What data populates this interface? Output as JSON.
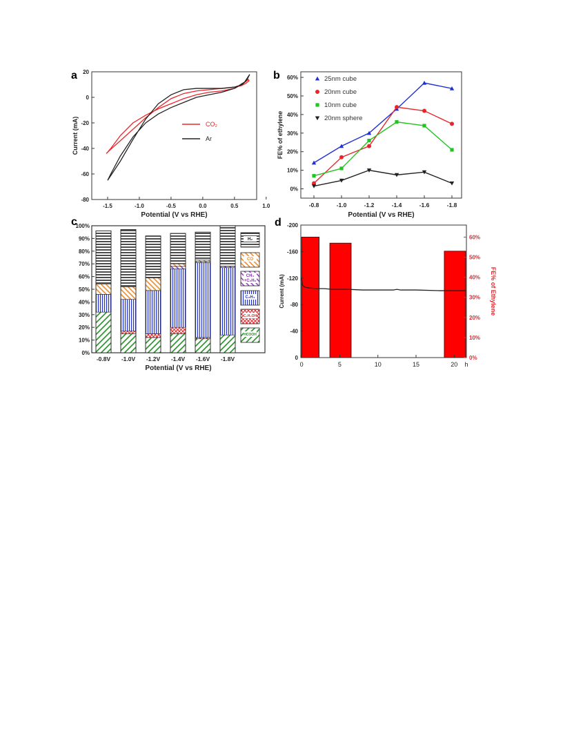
{
  "panels": {
    "a": {
      "letter": "a"
    },
    "b": {
      "letter": "b"
    },
    "c": {
      "letter": "c"
    },
    "d": {
      "letter": "d"
    }
  },
  "colors": {
    "red": "#e8262a",
    "blue": "#1f2fd6",
    "green": "#22c422",
    "black": "#222222",
    "orange": "#e88a2a",
    "purple": "#8a2cb8",
    "bar_red": "#ff0000",
    "hatch_green": "#1e8a1e"
  },
  "chart_data": [
    {
      "id": "a",
      "type": "line",
      "title": "",
      "xlabel": "Potential (V vs RHE)",
      "ylabel": "Current (mA)",
      "xlim": [
        -1.75,
        0.85
      ],
      "ylim": [
        -80,
        20
      ],
      "xticks": [
        "-1.5",
        "-1.0",
        "-0.5",
        "0.0",
        "0.5",
        "1.0"
      ],
      "xtick_values": [
        -1.5,
        -1.0,
        -0.5,
        0.0,
        0.5,
        1.0
      ],
      "yticks": [
        "20",
        "0",
        "-20",
        "-40",
        "-60",
        "-80"
      ],
      "ytick_values": [
        20,
        0,
        -20,
        -40,
        -60,
        -80
      ],
      "legend_position": "center-right",
      "series": [
        {
          "name": "CO₂",
          "color": "#e8262a",
          "x": [
            -1.48,
            -1.3,
            -1.1,
            -0.9,
            -0.7,
            -0.5,
            -0.3,
            -0.1,
            0.1,
            0.3,
            0.5,
            0.6,
            0.68,
            0.73,
            0.72,
            0.62,
            0.5,
            0.3,
            0.1,
            -0.1,
            -0.3,
            -0.5,
            -0.7,
            -0.9,
            -1.1,
            -1.3,
            -1.45,
            -1.52,
            -1.48
          ],
          "y": [
            -42,
            -34,
            -25,
            -16,
            -8,
            -1,
            3,
            5,
            6,
            7,
            8,
            9,
            11,
            13,
            14,
            10,
            7,
            5,
            4,
            2,
            -1,
            -5,
            -9,
            -14,
            -20,
            -30,
            -40,
            -44,
            -42
          ]
        },
        {
          "name": "Ar",
          "color": "#222222",
          "x": [
            -1.5,
            -1.3,
            -1.1,
            -0.9,
            -0.7,
            -0.5,
            -0.3,
            -0.1,
            0.1,
            0.3,
            0.5,
            0.62,
            0.7,
            0.74,
            0.66,
            0.5,
            0.3,
            0.1,
            -0.1,
            -0.3,
            -0.5,
            -0.7,
            -0.9,
            -1.1,
            -1.3,
            -1.45,
            -1.5
          ],
          "y": [
            -65,
            -50,
            -33,
            -17,
            -5,
            2,
            6,
            7,
            7,
            7,
            8,
            10,
            14,
            18,
            12,
            7,
            4,
            2,
            0,
            -4,
            -8,
            -13,
            -20,
            -31,
            -46,
            -60,
            -65
          ]
        }
      ]
    },
    {
      "id": "b",
      "type": "line",
      "title": "",
      "xlabel": "Potential (V vs RHE)",
      "ylabel": "FE% of ethylene",
      "categories": [
        "-0.8",
        "-1.0",
        "-1.2",
        "-1.4",
        "-1.6",
        "-1.8"
      ],
      "yticks": [
        "0%",
        "10%",
        "20%",
        "30%",
        "40%",
        "50%",
        "60%"
      ],
      "ylim": [
        -5,
        63
      ],
      "legend_position": "top-left",
      "series": [
        {
          "name": "25nm cube",
          "color": "#1f2fd6",
          "marker": "triangle-up",
          "values": [
            14,
            23,
            30,
            43,
            57,
            54
          ]
        },
        {
          "name": "20nm cube",
          "color": "#e8262a",
          "marker": "circle",
          "values": [
            3,
            17,
            23,
            44,
            42,
            35
          ]
        },
        {
          "name": "10nm cube",
          "color": "#22c422",
          "marker": "square",
          "values": [
            7,
            11,
            26,
            36,
            34,
            21
          ]
        },
        {
          "name": "20nm sphere",
          "color": "#222222",
          "marker": "triangle-down",
          "values": [
            1.5,
            4.5,
            10,
            7.5,
            9,
            3
          ]
        }
      ]
    },
    {
      "id": "c",
      "type": "bar",
      "title": "",
      "xlabel": "Potential (V vs RHE)",
      "ylabel": "",
      "categories": [
        "-0.8V",
        "-1.0V",
        "-1.2V",
        "-1.4V",
        "-1.6V",
        "-1.8V"
      ],
      "yticks": [
        "0%",
        "10%",
        "20%",
        "30%",
        "40%",
        "50%",
        "60%",
        "70%",
        "80%",
        "90%",
        "100%"
      ],
      "ylim": [
        0,
        100
      ],
      "stacked": true,
      "series": [
        {
          "name": "HCOOH",
          "pattern": "diag-green",
          "values": [
            32,
            15,
            12,
            15,
            11,
            14
          ]
        },
        {
          "name": "C2H5OH",
          "pattern": "cross-red",
          "values": [
            0,
            2,
            3,
            5,
            1,
            0
          ]
        },
        {
          "name": "C2H4",
          "pattern": "vert-blue",
          "values": [
            14,
            25,
            34,
            46,
            59,
            53
          ]
        },
        {
          "name": "CH4 +C2H6",
          "pattern": "diag-purple",
          "values": [
            0,
            0,
            0,
            2,
            1,
            1
          ]
        },
        {
          "name": "CO",
          "pattern": "diag-orange",
          "values": [
            8,
            10,
            10,
            2,
            1,
            0
          ]
        },
        {
          "name": "H2",
          "pattern": "horiz-black",
          "values": [
            42,
            45,
            33,
            24,
            22,
            32
          ]
        }
      ],
      "legend_labels": [
        {
          "key": "H2",
          "text": "H₂"
        },
        {
          "key": "CO",
          "text": "CO"
        },
        {
          "key": "CH4C2H6_a",
          "text": "CH₄"
        },
        {
          "key": "CH4C2H6_b",
          "text": "+C₂H₆"
        },
        {
          "key": "C2H4",
          "text": "C₂H₄"
        },
        {
          "key": "C2H5OH",
          "text": "C₂H₅OH"
        },
        {
          "key": "HCOOH",
          "text": "HCOOH"
        }
      ]
    },
    {
      "id": "d",
      "type": "bar",
      "title": "",
      "xlabel": "h",
      "ylabel": "Current (mA)",
      "y2label": "FE% of Ethylene",
      "xticks": [
        "0",
        "5",
        "10",
        "15",
        "20"
      ],
      "xtick_values": [
        0,
        5,
        10,
        15,
        20
      ],
      "xlim": [
        -0.1,
        21.6
      ],
      "yticks": [
        "-200",
        "-160",
        "-120",
        "-80",
        "-40",
        "0"
      ],
      "ytick_values": [
        -200,
        -160,
        -120,
        -80,
        -40,
        0
      ],
      "ylim": [
        0,
        -200
      ],
      "y2ticks": [
        "0%",
        "10%",
        "20%",
        "30%",
        "40%",
        "50%",
        "60%"
      ],
      "y2lim": [
        0,
        66
      ],
      "bars": [
        {
          "x_start": 0,
          "x_end": 2.3,
          "fe": 60
        },
        {
          "x_start": 3.7,
          "x_end": 6.5,
          "fe": 57
        },
        {
          "x_start": 18.7,
          "x_end": 21.5,
          "fe": 53
        }
      ],
      "current_series": {
        "color": "#222222",
        "x": [
          0,
          0.1,
          0.3,
          0.6,
          1,
          2,
          3,
          4,
          5,
          6,
          8,
          10,
          12,
          12.5,
          13,
          15,
          18,
          20,
          21.5
        ],
        "y": [
          -120,
          -110,
          -107,
          -106,
          -105,
          -104,
          -104,
          -103,
          -103,
          -103,
          -102,
          -102,
          -102,
          -103,
          -102,
          -102,
          -101,
          -101,
          -101
        ]
      }
    }
  ]
}
